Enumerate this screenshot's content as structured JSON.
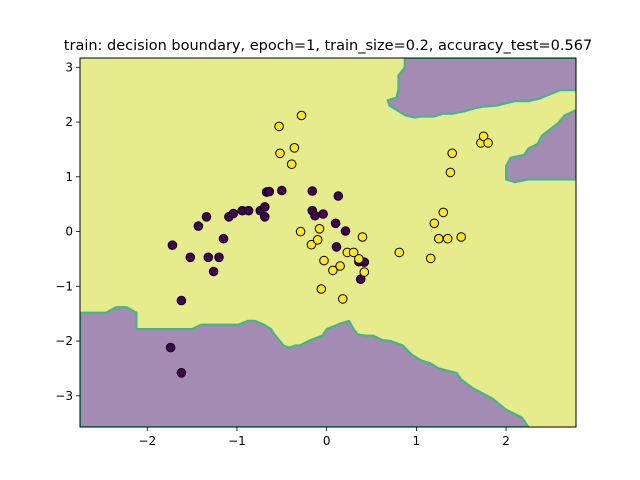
{
  "chart_data": {
    "type": "scatter",
    "title": "train: decision boundary, epoch=1, train_size=0.2, accuracy_test=0.567",
    "xlabel": "",
    "ylabel": "",
    "xlim": [
      -2.75,
      2.78
    ],
    "ylim": [
      -3.57,
      3.17
    ],
    "xticks": [
      -2,
      -1,
      0,
      1,
      2
    ],
    "yticks": [
      -3,
      -2,
      -1,
      0,
      1,
      2,
      3
    ],
    "grid": false,
    "legend": "none",
    "colors": {
      "class_0_region": "#a48bb4",
      "class_1_region": "#e6ec8c",
      "boundary": "#3db88a",
      "class_0_point": "#440154",
      "class_1_point": "#fde725",
      "point_edge": "#000000"
    },
    "regions": [
      {
        "class": 0,
        "polygon": [
          [
            -2.75,
            -3.57
          ],
          [
            -2.75,
            -1.48
          ],
          [
            -2.46,
            -1.48
          ],
          [
            -2.35,
            -1.38
          ],
          [
            -2.23,
            -1.38
          ],
          [
            -2.12,
            -1.48
          ],
          [
            -2.12,
            -1.78
          ],
          [
            -2.0,
            -1.78
          ],
          [
            -1.5,
            -1.78
          ],
          [
            -1.4,
            -1.7
          ],
          [
            -1.35,
            -1.7
          ],
          [
            -1.3,
            -1.7
          ],
          [
            -1.25,
            -1.7
          ],
          [
            -1.2,
            -1.7
          ],
          [
            -1.17,
            -1.7
          ],
          [
            -1.05,
            -1.7
          ],
          [
            -0.98,
            -1.7
          ],
          [
            -0.88,
            -1.63
          ],
          [
            -0.8,
            -1.63
          ],
          [
            -0.7,
            -1.7
          ],
          [
            -0.62,
            -1.78
          ],
          [
            -0.58,
            -1.88
          ],
          [
            -0.48,
            -2.08
          ],
          [
            -0.42,
            -2.12
          ],
          [
            -0.35,
            -2.08
          ],
          [
            -0.3,
            -2.08
          ],
          [
            -0.18,
            -1.98
          ],
          [
            -0.05,
            -1.9
          ],
          [
            0.0,
            -1.78
          ],
          [
            0.15,
            -1.68
          ],
          [
            0.25,
            -1.63
          ],
          [
            0.3,
            -1.78
          ],
          [
            0.35,
            -1.88
          ],
          [
            0.45,
            -1.9
          ],
          [
            0.52,
            -1.9
          ],
          [
            0.62,
            -1.98
          ],
          [
            0.72,
            -2.0
          ],
          [
            0.85,
            -2.08
          ],
          [
            0.95,
            -2.25
          ],
          [
            1.05,
            -2.35
          ],
          [
            1.15,
            -2.4
          ],
          [
            1.25,
            -2.5
          ],
          [
            1.45,
            -2.58
          ],
          [
            1.5,
            -2.7
          ],
          [
            1.62,
            -2.85
          ],
          [
            1.85,
            -3.05
          ],
          [
            2.0,
            -3.25
          ],
          [
            2.18,
            -3.4
          ],
          [
            2.25,
            -3.57
          ]
        ]
      },
      {
        "class": 0,
        "polygon": [
          [
            0.87,
            3.17
          ],
          [
            2.78,
            3.17
          ],
          [
            2.78,
            2.58
          ],
          [
            2.6,
            2.58
          ],
          [
            2.48,
            2.5
          ],
          [
            2.38,
            2.43
          ],
          [
            2.25,
            2.38
          ],
          [
            2.1,
            2.38
          ],
          [
            2.02,
            2.35
          ],
          [
            1.9,
            2.3
          ],
          [
            1.75,
            2.28
          ],
          [
            1.65,
            2.25
          ],
          [
            1.55,
            2.2
          ],
          [
            1.4,
            2.15
          ],
          [
            1.3,
            2.15
          ],
          [
            1.2,
            2.1
          ],
          [
            1.05,
            2.1
          ],
          [
            0.98,
            2.08
          ],
          [
            0.88,
            2.12
          ],
          [
            0.8,
            2.2
          ],
          [
            0.7,
            2.3
          ],
          [
            0.68,
            2.4
          ],
          [
            0.78,
            2.45
          ],
          [
            0.8,
            2.6
          ],
          [
            0.8,
            2.85
          ],
          [
            0.87,
            3.0
          ]
        ]
      },
      {
        "class": 0,
        "polygon": [
          [
            2.78,
            2.22
          ],
          [
            2.65,
            2.12
          ],
          [
            2.58,
            1.98
          ],
          [
            2.5,
            1.88
          ],
          [
            2.4,
            1.75
          ],
          [
            2.35,
            1.6
          ],
          [
            2.25,
            1.52
          ],
          [
            2.2,
            1.4
          ],
          [
            2.05,
            1.35
          ],
          [
            2.0,
            1.2
          ],
          [
            2.0,
            0.95
          ],
          [
            2.1,
            0.9
          ],
          [
            2.25,
            0.95
          ],
          [
            2.78,
            0.95
          ]
        ]
      }
    ],
    "series": [
      {
        "class": 0,
        "x": [
          -1.72,
          -1.62,
          -1.52,
          -1.43,
          -1.34,
          -1.32,
          -1.26,
          -1.2,
          -1.15,
          -1.09,
          -1.04,
          -0.94,
          -0.87,
          -0.74,
          -0.69,
          -0.69,
          -0.67,
          -0.64,
          -0.5,
          -0.16,
          -0.16,
          -0.13,
          -0.04,
          0.1,
          0.11,
          0.13,
          0.21,
          0.36,
          0.38,
          0.42,
          -1.74,
          -1.62
        ],
        "y": [
          -0.25,
          -1.26,
          -0.47,
          0.1,
          0.27,
          -0.47,
          -0.73,
          -0.47,
          -0.13,
          0.27,
          0.33,
          0.38,
          0.38,
          0.38,
          0.27,
          0.45,
          0.72,
          0.73,
          0.75,
          0.74,
          0.38,
          0.29,
          0.32,
          0.15,
          -0.28,
          0.65,
          0.01,
          -0.55,
          -0.87,
          -0.56,
          -2.12,
          -2.58
        ]
      },
      {
        "class": 1,
        "x": [
          -0.28,
          -0.53,
          -0.52,
          -0.39,
          -0.36,
          -0.29,
          -0.17,
          -0.1,
          -0.08,
          -0.03,
          -0.06,
          0.07,
          0.15,
          0.18,
          0.23,
          0.3,
          0.36,
          0.42,
          0.4,
          0.81,
          1.16,
          1.2,
          1.25,
          1.3,
          1.35,
          1.4,
          1.5,
          1.38,
          1.72,
          1.75,
          1.8
        ],
        "y": [
          2.12,
          1.92,
          1.43,
          1.23,
          1.53,
          0.0,
          -0.24,
          -0.15,
          0.05,
          -0.53,
          -1.05,
          -0.71,
          -0.63,
          -1.23,
          -0.38,
          -0.38,
          -0.5,
          -0.74,
          -0.1,
          -0.38,
          -0.49,
          0.15,
          -0.13,
          0.35,
          -0.13,
          1.43,
          -0.1,
          1.08,
          1.62,
          1.74,
          1.62
        ]
      }
    ]
  }
}
